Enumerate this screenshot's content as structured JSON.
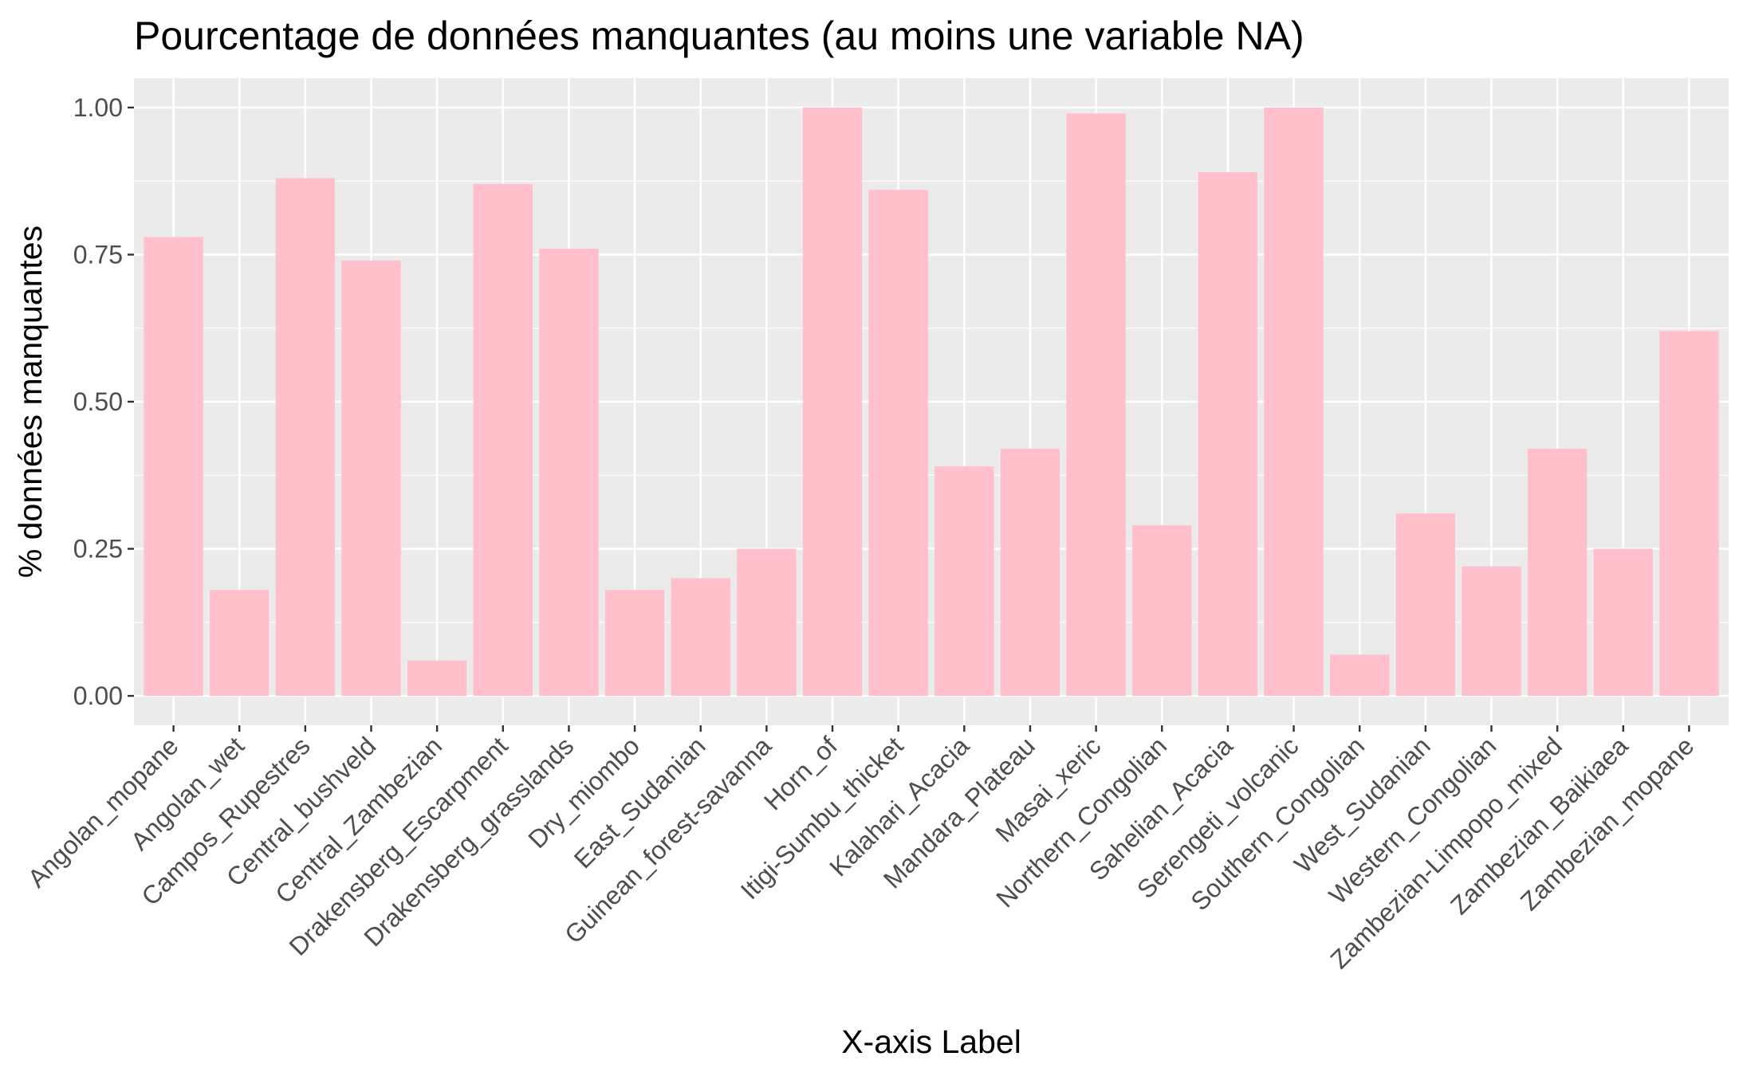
{
  "chart_data": {
    "type": "bar",
    "title": "Pourcentage de données manquantes (au moins une variable NA)",
    "xlabel": "X-axis Label",
    "ylabel": "% données manquantes",
    "ylim": [
      -0.05,
      1.05
    ],
    "yticks": [
      0.0,
      0.25,
      0.5,
      0.75,
      1.0
    ],
    "ytick_labels": [
      "0.00",
      "0.25",
      "0.50",
      "0.75",
      "1.00"
    ],
    "grid": true,
    "colors": {
      "bar": "#ffc0cb",
      "panel": "#ebebeb",
      "grid": "#ffffff",
      "tick_text": "#4d4d4d",
      "tick_mark": "#333333"
    },
    "categories": [
      "Angolan_mopane",
      "Angolan_wet",
      "Campos_Rupestres",
      "Central_bushveld",
      "Central_Zambezian",
      "Drakensberg_Escarpment",
      "Drakensberg_grasslands",
      "Dry_miombo",
      "East_Sudanian",
      "Guinean_forest-savanna",
      "Horn_of",
      "Itigi-Sumbu_thicket",
      "Kalahari_Acacia",
      "Mandara_Plateau",
      "Masai_xeric",
      "Northern_Congolian",
      "Sahelian_Acacia",
      "Serengeti_volcanic",
      "Southern_Congolian",
      "West_Sudanian",
      "Western_Congolian",
      "Zambezian-Limpopo_mixed",
      "Zambezian_Baikiaea",
      "Zambezian_mopane"
    ],
    "values": [
      0.78,
      0.18,
      0.88,
      0.74,
      0.06,
      0.87,
      0.76,
      0.18,
      0.2,
      0.25,
      1.0,
      0.86,
      0.39,
      0.42,
      0.99,
      0.29,
      0.89,
      1.0,
      0.07,
      0.31,
      0.22,
      0.42,
      0.25,
      0.62
    ]
  }
}
